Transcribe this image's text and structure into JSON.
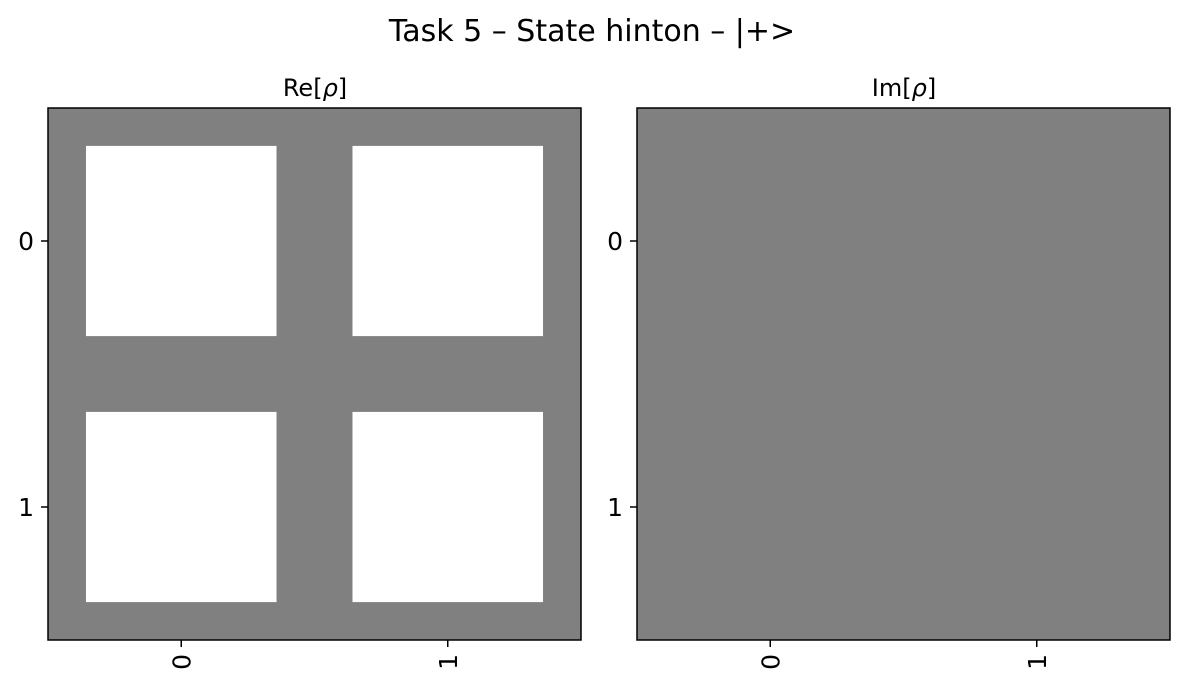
{
  "figure": {
    "suptitle": "Task 5 – State hinton – |+>"
  },
  "colors": {
    "background": "#808080",
    "positive": "#ffffff",
    "negative": "#000000"
  },
  "chart_data": [
    {
      "type": "heatmap",
      "subtype": "hinton",
      "title_prefix": "Re[",
      "title_symbol": "ρ",
      "title_suffix": "]",
      "x_ticks": [
        "0",
        "1"
      ],
      "y_ticks": [
        "0",
        "1"
      ],
      "matrix": [
        [
          0.5,
          0.5
        ],
        [
          0.5,
          0.5
        ]
      ],
      "max_weight": 0.5,
      "xlabel": "",
      "ylabel": ""
    },
    {
      "type": "heatmap",
      "subtype": "hinton",
      "title_prefix": "Im[",
      "title_symbol": "ρ",
      "title_suffix": "]",
      "x_ticks": [
        "0",
        "1"
      ],
      "y_ticks": [
        "0",
        "1"
      ],
      "matrix": [
        [
          0,
          0
        ],
        [
          0,
          0
        ]
      ],
      "max_weight": 0.5,
      "xlabel": "",
      "ylabel": ""
    }
  ]
}
